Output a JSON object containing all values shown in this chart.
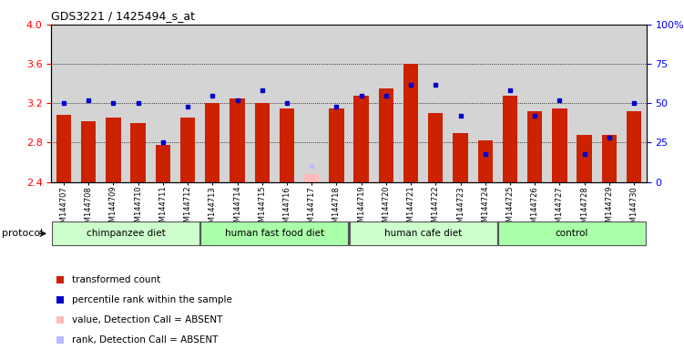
{
  "title": "GDS3221 / 1425494_s_at",
  "samples": [
    "GSM144707",
    "GSM144708",
    "GSM144709",
    "GSM144710",
    "GSM144711",
    "GSM144712",
    "GSM144713",
    "GSM144714",
    "GSM144715",
    "GSM144716",
    "GSM144717",
    "GSM144718",
    "GSM144719",
    "GSM144720",
    "GSM144721",
    "GSM144722",
    "GSM144723",
    "GSM144724",
    "GSM144725",
    "GSM144726",
    "GSM144727",
    "GSM144728",
    "GSM144729",
    "GSM144730"
  ],
  "red_values": [
    3.08,
    3.02,
    3.05,
    3.0,
    2.78,
    3.05,
    3.2,
    3.25,
    3.2,
    3.15,
    2.48,
    3.15,
    3.28,
    3.35,
    3.6,
    3.1,
    2.9,
    2.82,
    3.28,
    3.12,
    3.15,
    2.88,
    2.88,
    3.12
  ],
  "blue_values_pct": [
    50,
    52,
    50,
    50,
    25,
    48,
    55,
    52,
    58,
    50,
    10,
    48,
    55,
    55,
    62,
    62,
    42,
    18,
    58,
    42,
    52,
    18,
    28,
    50
  ],
  "absent_index": 10,
  "groups": [
    {
      "label": "chimpanzee diet",
      "start": 0,
      "end": 5
    },
    {
      "label": "human fast food diet",
      "start": 6,
      "end": 11
    },
    {
      "label": "human cafe diet",
      "start": 12,
      "end": 17
    },
    {
      "label": "control",
      "start": 18,
      "end": 23
    }
  ],
  "group_colors": [
    "#ccffcc",
    "#aaffaa",
    "#ccffcc",
    "#aaffaa"
  ],
  "ylim_left": [
    2.4,
    4.0
  ],
  "ylim_right": [
    0,
    100
  ],
  "yticks_left": [
    2.4,
    2.8,
    3.2,
    3.6,
    4.0
  ],
  "yticks_right": [
    0,
    25,
    50,
    75,
    100
  ],
  "ytick_right_labels": [
    "0",
    "25",
    "50",
    "75",
    "100%"
  ],
  "bar_color": "#cc2200",
  "dot_color": "#0000cc",
  "absent_bar_color": "#ffbbbb",
  "absent_dot_color": "#bbbbff",
  "bg_color": "#d4d4d4",
  "grid_color": "#000000",
  "legend_items": [
    {
      "color": "#cc2200",
      "label": "transformed count"
    },
    {
      "color": "#0000cc",
      "label": "percentile rank within the sample"
    },
    {
      "color": "#ffbbbb",
      "label": "value, Detection Call = ABSENT"
    },
    {
      "color": "#bbbbff",
      "label": "rank, Detection Call = ABSENT"
    }
  ]
}
